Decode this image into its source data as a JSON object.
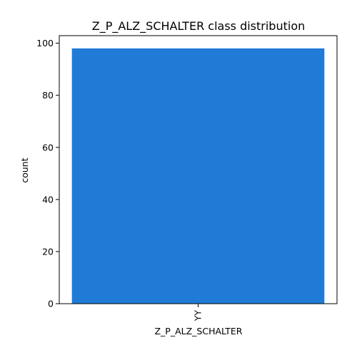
{
  "chart_data": {
    "type": "bar",
    "title": "Z_P_ALZ_SCHALTER class distribution",
    "xlabel": "Z_P_ALZ_SCHALTER",
    "ylabel": "count",
    "categories": [
      "YY"
    ],
    "values": [
      98
    ],
    "ylim": [
      0,
      102.9
    ],
    "yticks": [
      0,
      20,
      40,
      60,
      80,
      100
    ],
    "ytick_labels": [
      "0",
      "20",
      "40",
      "60",
      "80",
      "100"
    ],
    "bar_color": "#1f7bd6",
    "grid": false,
    "legend": "none",
    "xtick_rotation": "vertical"
  }
}
